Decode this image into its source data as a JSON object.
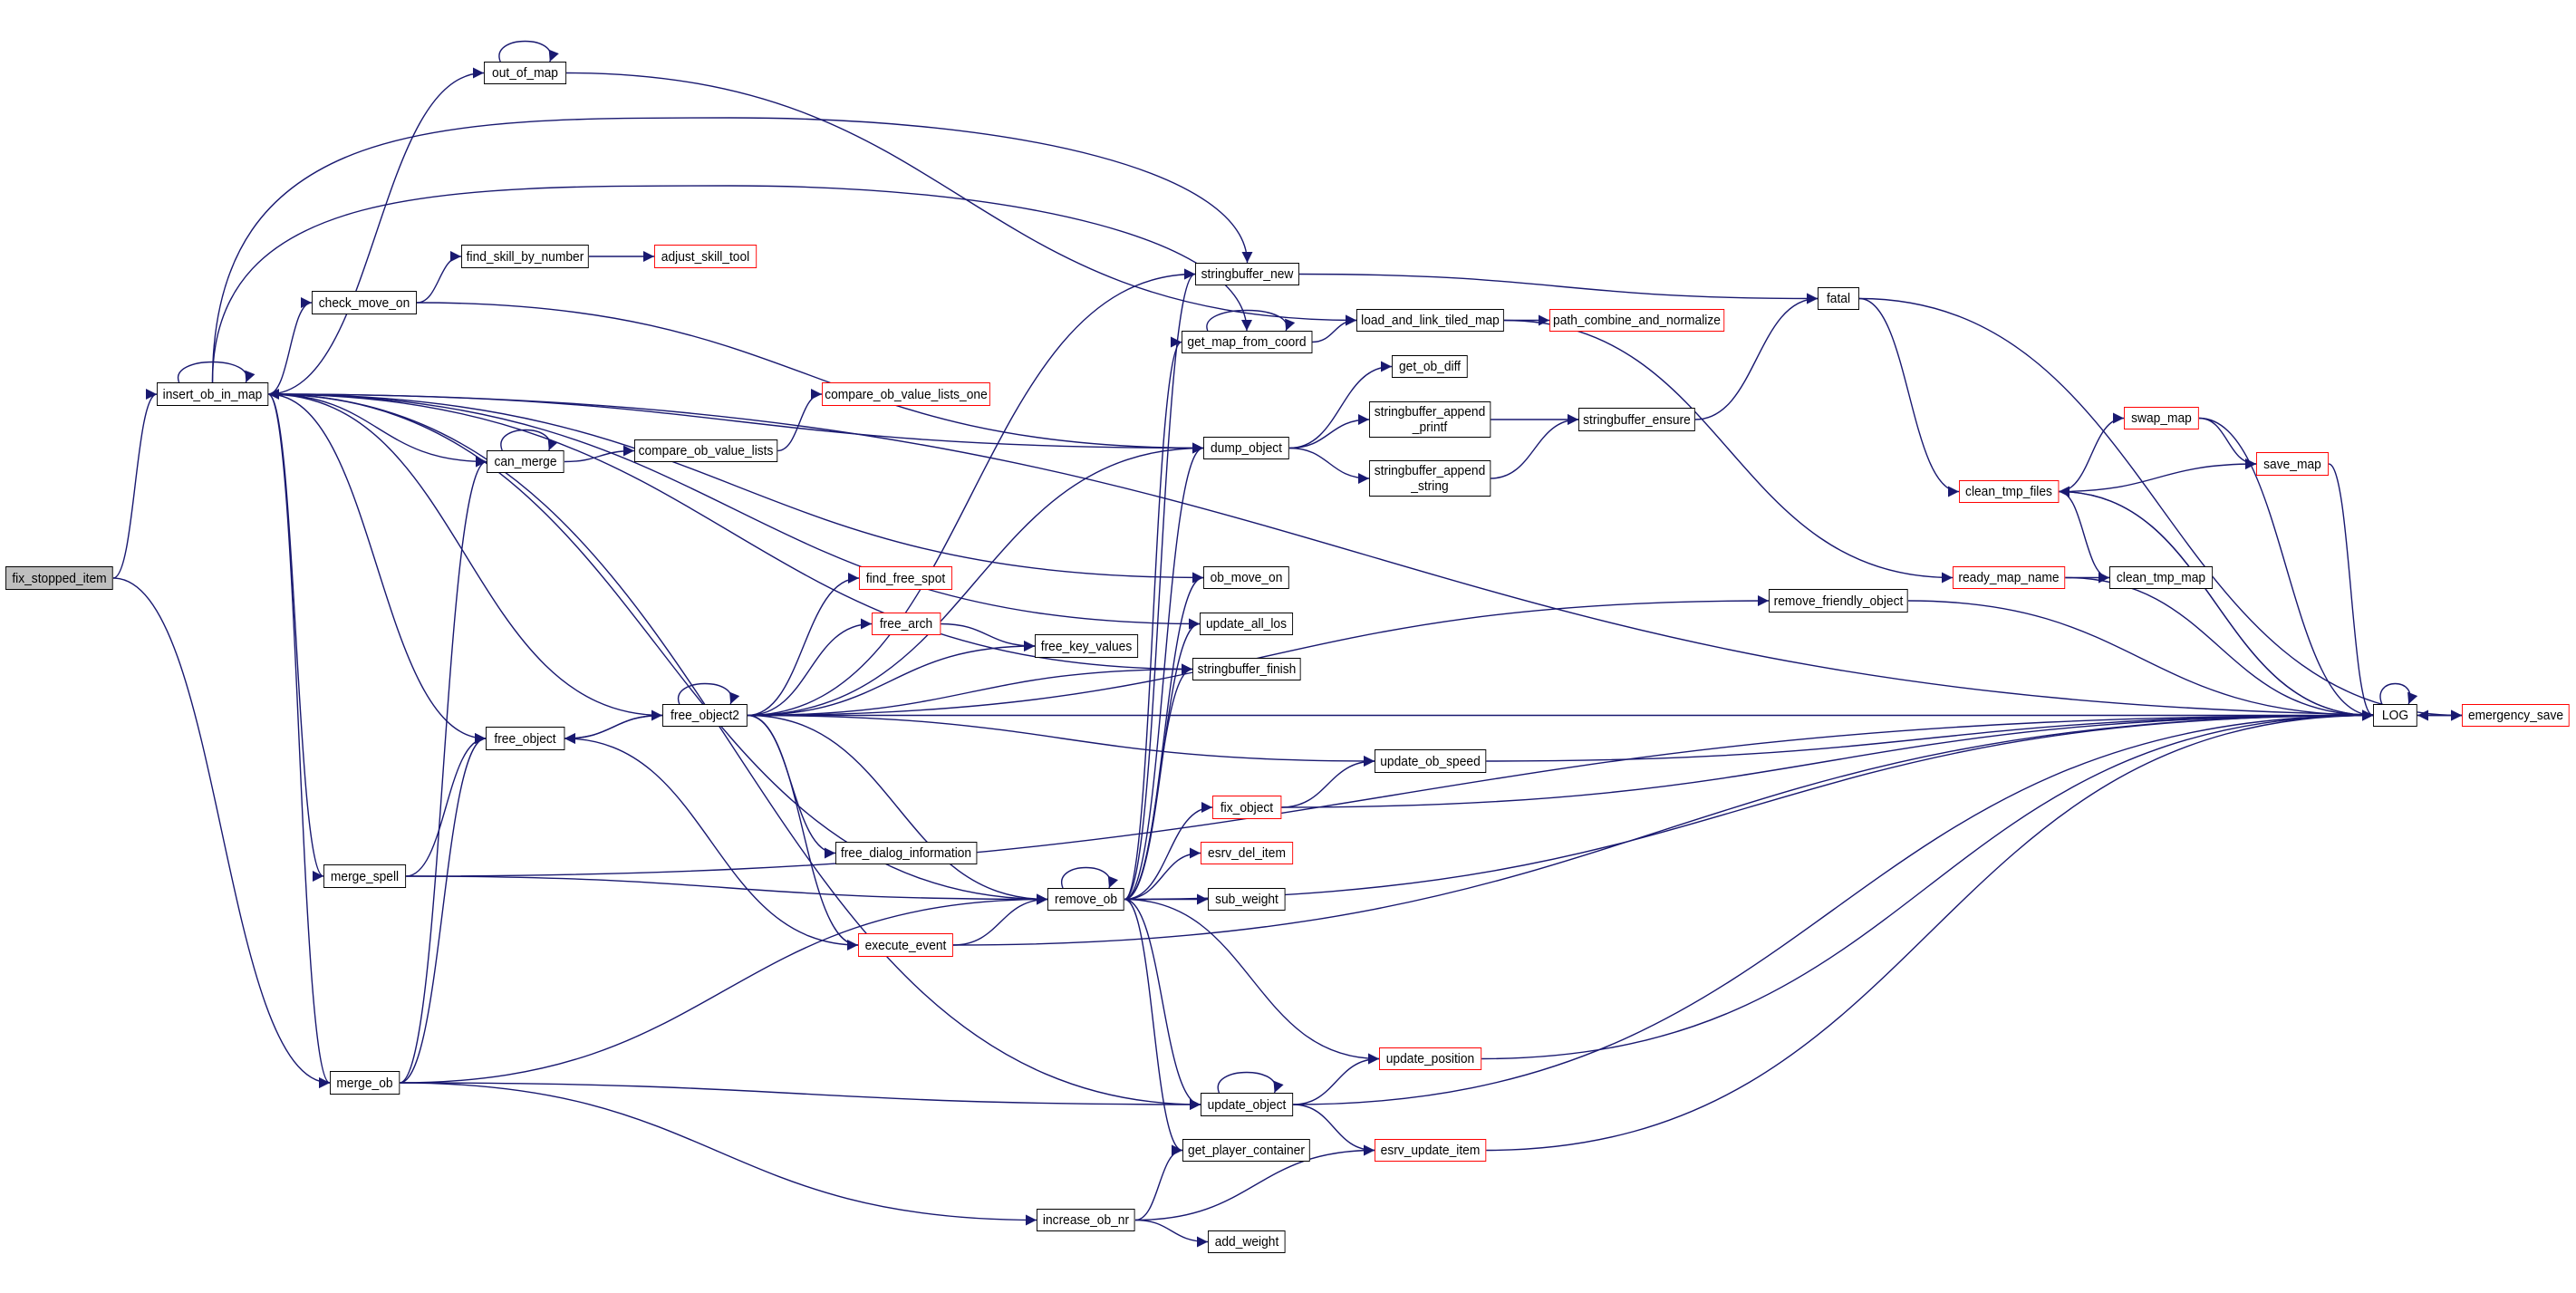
{
  "colors": {
    "edge": "#191970",
    "truncated_border": "#ff0000",
    "normal_border": "#000000",
    "focus_fill": "#bfbfbf"
  },
  "nodes": [
    {
      "id": "fix_stopped_item",
      "lines": [
        "fix_stopped_item"
      ],
      "style": "highlight"
    },
    {
      "id": "insert_ob_in_map",
      "lines": [
        "insert_ob_in_map"
      ],
      "style": "normal"
    },
    {
      "id": "out_of_map",
      "lines": [
        "out_of_map"
      ],
      "style": "normal"
    },
    {
      "id": "find_skill_by_number",
      "lines": [
        "find_skill_by_number"
      ],
      "style": "normal"
    },
    {
      "id": "adjust_skill_tool",
      "lines": [
        "adjust_skill_tool"
      ],
      "style": "red"
    },
    {
      "id": "check_move_on",
      "lines": [
        "check_move_on"
      ],
      "style": "normal"
    },
    {
      "id": "can_merge",
      "lines": [
        "can_merge"
      ],
      "style": "normal"
    },
    {
      "id": "compare_ob_value_lists",
      "lines": [
        "compare_ob_value_lists"
      ],
      "style": "normal"
    },
    {
      "id": "compare_ob_value_lists_one",
      "lines": [
        "compare_ob_value_lists_one"
      ],
      "style": "red"
    },
    {
      "id": "free_object",
      "lines": [
        "free_object"
      ],
      "style": "normal"
    },
    {
      "id": "free_object2",
      "lines": [
        "free_object2"
      ],
      "style": "normal"
    },
    {
      "id": "merge_spell",
      "lines": [
        "merge_spell"
      ],
      "style": "normal"
    },
    {
      "id": "merge_ob",
      "lines": [
        "merge_ob"
      ],
      "style": "normal"
    },
    {
      "id": "find_free_spot",
      "lines": [
        "find_free_spot"
      ],
      "style": "red"
    },
    {
      "id": "free_arch",
      "lines": [
        "free_arch"
      ],
      "style": "red"
    },
    {
      "id": "free_dialog_information",
      "lines": [
        "free_dialog_information"
      ],
      "style": "normal"
    },
    {
      "id": "execute_event",
      "lines": [
        "execute_event"
      ],
      "style": "red"
    },
    {
      "id": "stringbuffer_new",
      "lines": [
        "stringbuffer_new"
      ],
      "style": "normal"
    },
    {
      "id": "get_map_from_coord",
      "lines": [
        "get_map_from_coord"
      ],
      "style": "normal"
    },
    {
      "id": "load_and_link_tiled_map",
      "lines": [
        "load_and_link_tiled_map"
      ],
      "style": "normal"
    },
    {
      "id": "path_combine_and_normalize",
      "lines": [
        "path_combine_and_normalize"
      ],
      "style": "red"
    },
    {
      "id": "get_ob_diff",
      "lines": [
        "get_ob_diff"
      ],
      "style": "normal"
    },
    {
      "id": "stringbuffer_append_printf",
      "lines": [
        "stringbuffer_append",
        "_printf"
      ],
      "style": "normal"
    },
    {
      "id": "stringbuffer_ensure",
      "lines": [
        "stringbuffer_ensure"
      ],
      "style": "normal"
    },
    {
      "id": "dump_object",
      "lines": [
        "dump_object"
      ],
      "style": "normal"
    },
    {
      "id": "stringbuffer_append_string",
      "lines": [
        "stringbuffer_append",
        "_string"
      ],
      "style": "normal"
    },
    {
      "id": "ob_move_on",
      "lines": [
        "ob_move_on"
      ],
      "style": "normal"
    },
    {
      "id": "update_all_los",
      "lines": [
        "update_all_los"
      ],
      "style": "normal"
    },
    {
      "id": "free_key_values",
      "lines": [
        "free_key_values"
      ],
      "style": "normal"
    },
    {
      "id": "stringbuffer_finish",
      "lines": [
        "stringbuffer_finish"
      ],
      "style": "normal"
    },
    {
      "id": "update_ob_speed",
      "lines": [
        "update_ob_speed"
      ],
      "style": "normal"
    },
    {
      "id": "fix_object",
      "lines": [
        "fix_object"
      ],
      "style": "red"
    },
    {
      "id": "esrv_del_item",
      "lines": [
        "esrv_del_item"
      ],
      "style": "red"
    },
    {
      "id": "remove_ob",
      "lines": [
        "remove_ob"
      ],
      "style": "normal"
    },
    {
      "id": "sub_weight",
      "lines": [
        "sub_weight"
      ],
      "style": "normal"
    },
    {
      "id": "update_position",
      "lines": [
        "update_position"
      ],
      "style": "red"
    },
    {
      "id": "update_object",
      "lines": [
        "update_object"
      ],
      "style": "normal"
    },
    {
      "id": "get_player_container",
      "lines": [
        "get_player_container"
      ],
      "style": "normal"
    },
    {
      "id": "esrv_update_item",
      "lines": [
        "esrv_update_item"
      ],
      "style": "red"
    },
    {
      "id": "increase_ob_nr",
      "lines": [
        "increase_ob_nr"
      ],
      "style": "normal"
    },
    {
      "id": "add_weight",
      "lines": [
        "add_weight"
      ],
      "style": "normal"
    },
    {
      "id": "remove_friendly_object",
      "lines": [
        "remove_friendly_object"
      ],
      "style": "normal"
    },
    {
      "id": "fatal",
      "lines": [
        "fatal"
      ],
      "style": "normal"
    },
    {
      "id": "swap_map",
      "lines": [
        "swap_map"
      ],
      "style": "red"
    },
    {
      "id": "save_map",
      "lines": [
        "save_map"
      ],
      "style": "red"
    },
    {
      "id": "clean_tmp_files",
      "lines": [
        "clean_tmp_files"
      ],
      "style": "red"
    },
    {
      "id": "ready_map_name",
      "lines": [
        "ready_map_name"
      ],
      "style": "red"
    },
    {
      "id": "clean_tmp_map",
      "lines": [
        "clean_tmp_map"
      ],
      "style": "normal"
    },
    {
      "id": "LOG",
      "lines": [
        "LOG"
      ],
      "style": "normal"
    },
    {
      "id": "emergency_save",
      "lines": [
        "emergency_save"
      ],
      "style": "red"
    }
  ],
  "edges": [
    [
      "fix_stopped_item",
      "insert_ob_in_map"
    ],
    [
      "fix_stopped_item",
      "merge_ob"
    ],
    [
      "insert_ob_in_map",
      "insert_ob_in_map"
    ],
    [
      "insert_ob_in_map",
      "out_of_map"
    ],
    [
      "insert_ob_in_map",
      "emergency_save"
    ],
    [
      "insert_ob_in_map",
      "stringbuffer_new"
    ],
    [
      "insert_ob_in_map",
      "get_map_from_coord"
    ],
    [
      "insert_ob_in_map",
      "dump_object"
    ],
    [
      "insert_ob_in_map",
      "check_move_on"
    ],
    [
      "insert_ob_in_map",
      "ob_move_on"
    ],
    [
      "insert_ob_in_map",
      "update_all_los"
    ],
    [
      "insert_ob_in_map",
      "stringbuffer_finish"
    ],
    [
      "insert_ob_in_map",
      "can_merge"
    ],
    [
      "insert_ob_in_map",
      "free_object"
    ],
    [
      "insert_ob_in_map",
      "merge_spell"
    ],
    [
      "insert_ob_in_map",
      "merge_ob"
    ],
    [
      "insert_ob_in_map",
      "remove_ob"
    ],
    [
      "insert_ob_in_map",
      "update_object"
    ],
    [
      "out_of_map",
      "out_of_map"
    ],
    [
      "out_of_map",
      "load_and_link_tiled_map"
    ],
    [
      "check_move_on",
      "find_skill_by_number"
    ],
    [
      "check_move_on",
      "dump_object"
    ],
    [
      "find_skill_by_number",
      "adjust_skill_tool"
    ],
    [
      "can_merge",
      "can_merge"
    ],
    [
      "can_merge",
      "compare_ob_value_lists"
    ],
    [
      "compare_ob_value_lists",
      "compare_ob_value_lists_one"
    ],
    [
      "merge_spell",
      "free_object"
    ],
    [
      "merge_spell",
      "remove_ob"
    ],
    [
      "merge_spell",
      "LOG"
    ],
    [
      "merge_ob",
      "can_merge"
    ],
    [
      "merge_ob",
      "free_object"
    ],
    [
      "merge_ob",
      "remove_ob"
    ],
    [
      "merge_ob",
      "update_object"
    ],
    [
      "merge_ob",
      "increase_ob_nr"
    ],
    [
      "free_object",
      "free_object2"
    ],
    [
      "free_object2",
      "free_object2"
    ],
    [
      "free_object2",
      "free_object"
    ],
    [
      "free_object2",
      "insert_ob_in_map"
    ],
    [
      "free_object2",
      "stringbuffer_new"
    ],
    [
      "free_object2",
      "dump_object"
    ],
    [
      "free_object2",
      "find_free_spot"
    ],
    [
      "free_object2",
      "free_arch"
    ],
    [
      "free_object2",
      "free_key_values"
    ],
    [
      "free_object2",
      "stringbuffer_finish"
    ],
    [
      "free_object2",
      "LOG"
    ],
    [
      "free_object2",
      "update_ob_speed"
    ],
    [
      "free_object2",
      "free_dialog_information"
    ],
    [
      "free_object2",
      "remove_ob"
    ],
    [
      "free_object2",
      "execute_event"
    ],
    [
      "free_object2",
      "remove_friendly_object"
    ],
    [
      "free_arch",
      "free_key_values"
    ],
    [
      "execute_event",
      "free_object"
    ],
    [
      "execute_event",
      "remove_ob"
    ],
    [
      "execute_event",
      "LOG"
    ],
    [
      "remove_ob",
      "remove_ob"
    ],
    [
      "remove_ob",
      "get_map_from_coord"
    ],
    [
      "remove_ob",
      "dump_object"
    ],
    [
      "remove_ob",
      "stringbuffer_new"
    ],
    [
      "remove_ob",
      "ob_move_on"
    ],
    [
      "remove_ob",
      "update_all_los"
    ],
    [
      "remove_ob",
      "stringbuffer_finish"
    ],
    [
      "remove_ob",
      "fix_object"
    ],
    [
      "remove_ob",
      "esrv_del_item"
    ],
    [
      "remove_ob",
      "sub_weight"
    ],
    [
      "remove_ob",
      "LOG"
    ],
    [
      "remove_ob",
      "update_position"
    ],
    [
      "remove_ob",
      "update_object"
    ],
    [
      "remove_ob",
      "get_player_container"
    ],
    [
      "fix_object",
      "update_ob_speed"
    ],
    [
      "fix_object",
      "LOG"
    ],
    [
      "update_ob_speed",
      "LOG"
    ],
    [
      "update_object",
      "update_object"
    ],
    [
      "update_object",
      "update_position"
    ],
    [
      "update_object",
      "esrv_update_item"
    ],
    [
      "update_object",
      "LOG"
    ],
    [
      "update_position",
      "LOG"
    ],
    [
      "esrv_update_item",
      "LOG"
    ],
    [
      "increase_ob_nr",
      "get_player_container"
    ],
    [
      "increase_ob_nr",
      "esrv_update_item"
    ],
    [
      "increase_ob_nr",
      "add_weight"
    ],
    [
      "stringbuffer_new",
      "fatal"
    ],
    [
      "get_map_from_coord",
      "get_map_from_coord"
    ],
    [
      "get_map_from_coord",
      "load_and_link_tiled_map"
    ],
    [
      "load_and_link_tiled_map",
      "path_combine_and_normalize"
    ],
    [
      "load_and_link_tiled_map",
      "ready_map_name"
    ],
    [
      "dump_object",
      "get_ob_diff"
    ],
    [
      "dump_object",
      "stringbuffer_append_printf"
    ],
    [
      "dump_object",
      "stringbuffer_append_string"
    ],
    [
      "stringbuffer_append_printf",
      "stringbuffer_ensure"
    ],
    [
      "stringbuffer_append_string",
      "stringbuffer_ensure"
    ],
    [
      "stringbuffer_ensure",
      "fatal"
    ],
    [
      "fatal",
      "emergency_save"
    ],
    [
      "fatal",
      "clean_tmp_files"
    ],
    [
      "clean_tmp_files",
      "swap_map"
    ],
    [
      "clean_tmp_files",
      "save_map"
    ],
    [
      "clean_tmp_files",
      "clean_tmp_map"
    ],
    [
      "clean_tmp_files",
      "LOG"
    ],
    [
      "swap_map",
      "save_map"
    ],
    [
      "swap_map",
      "LOG"
    ],
    [
      "save_map",
      "LOG"
    ],
    [
      "ready_map_name",
      "clean_tmp_map"
    ],
    [
      "ready_map_name",
      "LOG"
    ],
    [
      "remove_friendly_object",
      "LOG"
    ],
    [
      "LOG",
      "LOG"
    ],
    [
      "LOG",
      "clean_tmp_files"
    ],
    [
      "LOG",
      "emergency_save"
    ],
    [
      "emergency_save",
      "LOG"
    ]
  ]
}
